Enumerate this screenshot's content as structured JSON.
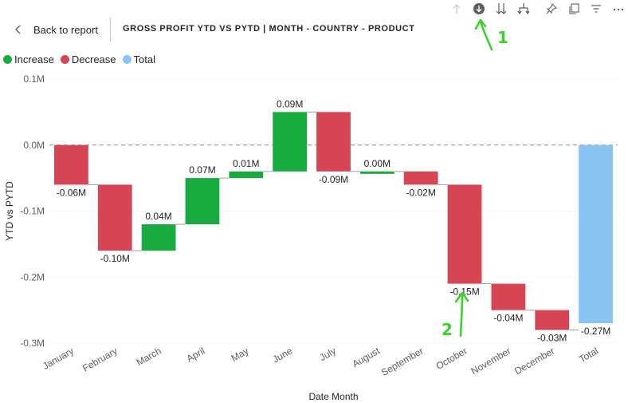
{
  "header": {
    "back_label": "Back to report",
    "title": "GROSS PROFIT YTD VS PYTD | MONTH - COUNTRY - PRODUCT"
  },
  "toolbar": {
    "icons": [
      "arrow-up-icon",
      "drill-down-icon",
      "expand-all-icon",
      "expand-hierarchy-icon",
      "pin-icon",
      "copy-icon",
      "filter-icon",
      "more-options-icon"
    ]
  },
  "legend": [
    {
      "label": "Increase",
      "color": "#1aab40"
    },
    {
      "label": "Decrease",
      "color": "#d64554"
    },
    {
      "label": "Total",
      "color": "#8ac4f5"
    }
  ],
  "annotations": [
    {
      "label": "1",
      "color": "#3bd22c"
    },
    {
      "label": "2",
      "color": "#3bd22c"
    }
  ],
  "chart_data": {
    "type": "waterfall",
    "xlabel": "Date Month",
    "ylabel": "YTD vs PYTD",
    "ylim": [
      -0.3,
      0.1
    ],
    "yticks": [
      0.1,
      0.0,
      -0.1,
      -0.2,
      -0.3
    ],
    "ytick_labels": [
      "0.1M",
      "0.0M",
      "-0.1M",
      "-0.2M",
      "-0.3M"
    ],
    "grid": true,
    "legend_position": "top-left",
    "categories": [
      "January",
      "February",
      "March",
      "April",
      "May",
      "June",
      "July",
      "August",
      "September",
      "October",
      "November",
      "December",
      "Total"
    ],
    "values": [
      -0.06,
      -0.1,
      0.04,
      0.07,
      0.01,
      0.09,
      -0.09,
      0.0,
      -0.02,
      -0.15,
      -0.04,
      -0.03,
      -0.27
    ],
    "kinds": [
      "decrease",
      "decrease",
      "increase",
      "increase",
      "increase",
      "increase",
      "decrease",
      "increase",
      "decrease",
      "decrease",
      "decrease",
      "decrease",
      "total"
    ],
    "data_labels": [
      "-0.06M",
      "-0.10M",
      "0.04M",
      "0.07M",
      "0.01M",
      "0.09M",
      "-0.09M",
      "0.00M",
      "-0.02M",
      "-0.15M",
      "-0.04M",
      "-0.03M",
      "-0.27M"
    ]
  }
}
